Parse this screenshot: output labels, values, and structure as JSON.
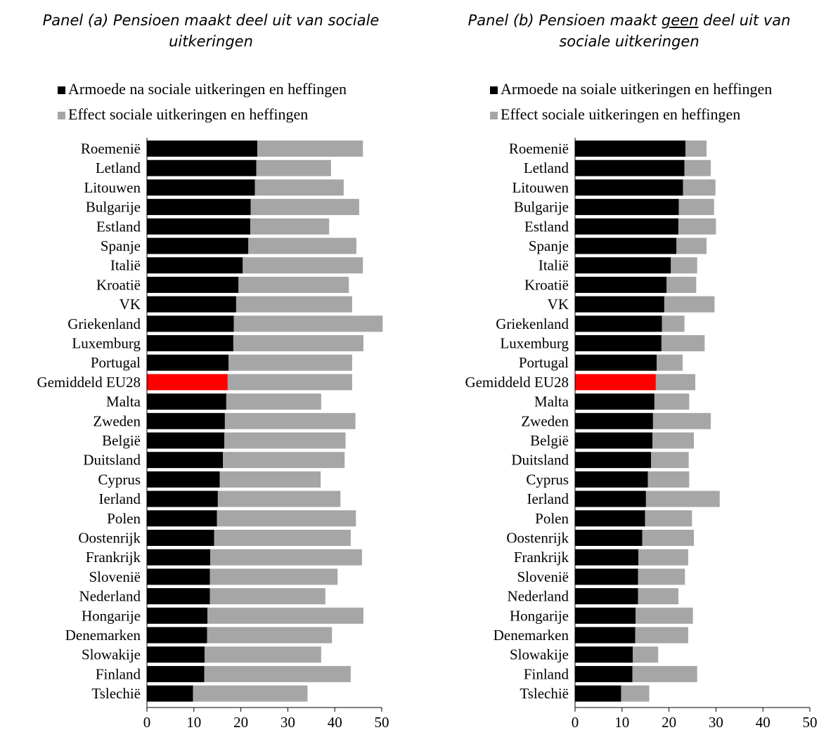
{
  "panels": [
    {
      "title_pre": "Panel (a) Pensioen maakt deel uit van sociale",
      "title_underlined": "",
      "title_post": "",
      "title_line2": "uitkeringen"
    },
    {
      "title_pre": "Panel (b) Pensioen maakt ",
      "title_underlined": "geen",
      "title_post": " deel uit van",
      "title_line2": "sociale uitkeringen"
    }
  ],
  "colors": {
    "poverty": "#000000",
    "effect": "#a6a6a6",
    "highlight": "#ff0000",
    "axis": "#000000"
  },
  "chart_data": [
    {
      "type": "bar",
      "orientation": "horizontal",
      "stacked": true,
      "title": "Panel (a) Pensioen maakt deel uit van sociale uitkeringen",
      "legend_position": "top",
      "xlim": [
        0,
        50
      ],
      "x_ticks": [
        0,
        10,
        20,
        30,
        40,
        50
      ],
      "grid": false,
      "highlight_category": "Gemiddeld EU28",
      "categories": [
        "Roemenië",
        "Letland",
        "Litouwen",
        "Bulgarije",
        "Estland",
        "Spanje",
        "Italië",
        "Kroatië",
        "VK",
        "Griekenland",
        "Luxemburg",
        "Portugal",
        "Gemiddeld EU28",
        "Malta",
        "Zweden",
        "België",
        "Duitsland",
        "Cyprus",
        "Ierland",
        "Polen",
        "Oostenrijk",
        "Frankrijk",
        "Slovenië",
        "Nederland",
        "Hongarije",
        "Denemarken",
        "Slowakije",
        "Finland",
        "Tslechië"
      ],
      "series": [
        {
          "name": "Armoede na sociale uitkeringen en heffingen",
          "color_key": "poverty",
          "values": [
            23.5,
            23.3,
            23.0,
            22.1,
            22.0,
            21.6,
            20.4,
            19.5,
            19.0,
            18.5,
            18.4,
            17.4,
            17.2,
            16.9,
            16.6,
            16.5,
            16.2,
            15.5,
            15.1,
            14.9,
            14.3,
            13.5,
            13.4,
            13.4,
            12.9,
            12.8,
            12.3,
            12.2,
            9.8
          ],
          "total_values": [
            46.0,
            39.2,
            41.9,
            45.2,
            38.8,
            44.6,
            46.0,
            43.0,
            43.7,
            50.2,
            46.1,
            43.7,
            43.7,
            37.1,
            44.4,
            42.3,
            42.1,
            37.0,
            41.2,
            44.5,
            43.4,
            45.8,
            40.6,
            38.0,
            46.1,
            39.4,
            37.1,
            43.4,
            34.2
          ]
        },
        {
          "name": "Effect sociale uitkeringen en heffingen",
          "color_key": "effect",
          "values": [
            22.5,
            15.9,
            18.9,
            23.1,
            16.8,
            23.0,
            25.6,
            23.5,
            24.7,
            31.7,
            27.7,
            26.3,
            26.5,
            20.2,
            27.8,
            25.8,
            25.9,
            21.5,
            26.1,
            29.6,
            29.1,
            32.3,
            27.2,
            24.6,
            33.2,
            26.6,
            24.8,
            31.2,
            24.4
          ]
        }
      ]
    },
    {
      "type": "bar",
      "orientation": "horizontal",
      "stacked": true,
      "title": "Panel (b) Pensioen maakt geen deel uit van sociale uitkeringen",
      "legend_position": "top",
      "xlim": [
        0,
        50
      ],
      "x_ticks": [
        0,
        10,
        20,
        30,
        40,
        50
      ],
      "grid": false,
      "highlight_category": "Gemiddeld EU28",
      "categories": [
        "Roemenië",
        "Letland",
        "Litouwen",
        "Bulgarije",
        "Estland",
        "Spanje",
        "Italië",
        "Kroatië",
        "VK",
        "Griekenland",
        "Luxemburg",
        "Portugal",
        "Gemiddeld EU28",
        "Malta",
        "Zweden",
        "België",
        "Duitsland",
        "Cyprus",
        "Ierland",
        "Polen",
        "Oostenrijk",
        "Frankrijk",
        "Slovenië",
        "Nederland",
        "Hongarije",
        "Denemarken",
        "Slowakije",
        "Finland",
        "Tslechië"
      ],
      "series": [
        {
          "name": "Armoede na soiale uitkeringen en heffingen",
          "color_key": "poverty",
          "values": [
            23.5,
            23.3,
            23.0,
            22.1,
            22.0,
            21.6,
            20.4,
            19.5,
            19.0,
            18.5,
            18.4,
            17.4,
            17.2,
            16.9,
            16.6,
            16.5,
            16.2,
            15.5,
            15.1,
            14.9,
            14.3,
            13.5,
            13.4,
            13.4,
            12.9,
            12.8,
            12.3,
            12.2,
            9.8
          ],
          "total_values": [
            28.0,
            28.9,
            29.9,
            29.6,
            30.0,
            28.0,
            26.0,
            25.8,
            29.7,
            23.3,
            27.6,
            22.9,
            25.6,
            24.3,
            28.9,
            25.3,
            24.2,
            24.3,
            30.8,
            24.9,
            25.3,
            24.1,
            23.4,
            22.0,
            25.1,
            24.1,
            17.7,
            26.0,
            15.8
          ]
        },
        {
          "name": "Effect sociale uitkeringen en heffingen",
          "color_key": "effect",
          "values": [
            4.5,
            5.6,
            6.9,
            7.5,
            8.0,
            6.4,
            5.6,
            6.3,
            10.7,
            4.8,
            9.2,
            5.5,
            8.4,
            7.4,
            12.3,
            8.8,
            8.0,
            8.8,
            15.7,
            10.0,
            11.0,
            10.6,
            10.0,
            8.6,
            12.2,
            11.3,
            5.4,
            13.8,
            6.0
          ]
        }
      ]
    }
  ]
}
